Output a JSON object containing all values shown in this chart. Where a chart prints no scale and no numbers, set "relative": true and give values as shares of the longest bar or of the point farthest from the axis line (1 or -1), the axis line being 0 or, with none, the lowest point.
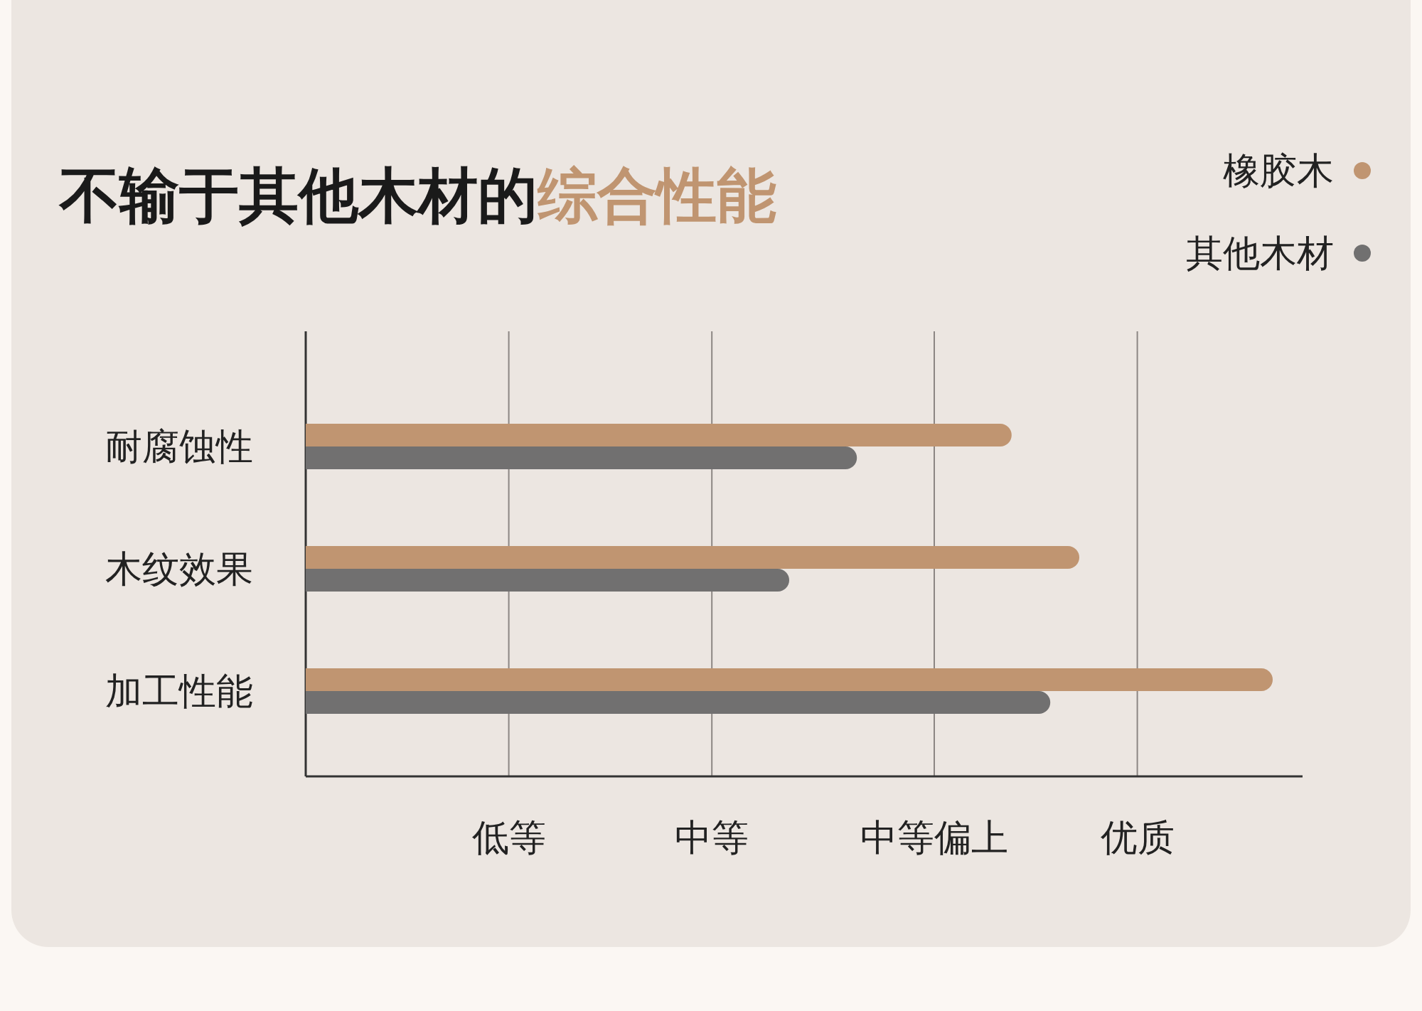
{
  "chart_data": {
    "type": "bar",
    "orientation": "horizontal",
    "relative": true,
    "title": "不输于其他木材的**综合性能**",
    "categories": [
      "耐腐蚀性",
      "木纹效果",
      "加工性能"
    ],
    "series": [
      {
        "name": "橡胶木",
        "color": "#c09571",
        "values": [
          0.73,
          0.8,
          1
        ]
      },
      {
        "name": "其他木材",
        "color": "#717070",
        "values": [
          0.57,
          0.5,
          0.77
        ]
      }
    ],
    "ref_lines": [
      {
        "axis": "x",
        "value": 0.21,
        "label": "低等",
        "color": "#8c8683"
      },
      {
        "axis": "x",
        "value": 0.42,
        "label": "中等",
        "color": "#8c8683"
      },
      {
        "axis": "x",
        "value": 0.65,
        "label": "中等偏上",
        "color": "#8c8683"
      },
      {
        "axis": "x",
        "value": 0.86,
        "label": "优质",
        "color": "#8c8683"
      }
    ],
    "legend": "top right"
  }
}
